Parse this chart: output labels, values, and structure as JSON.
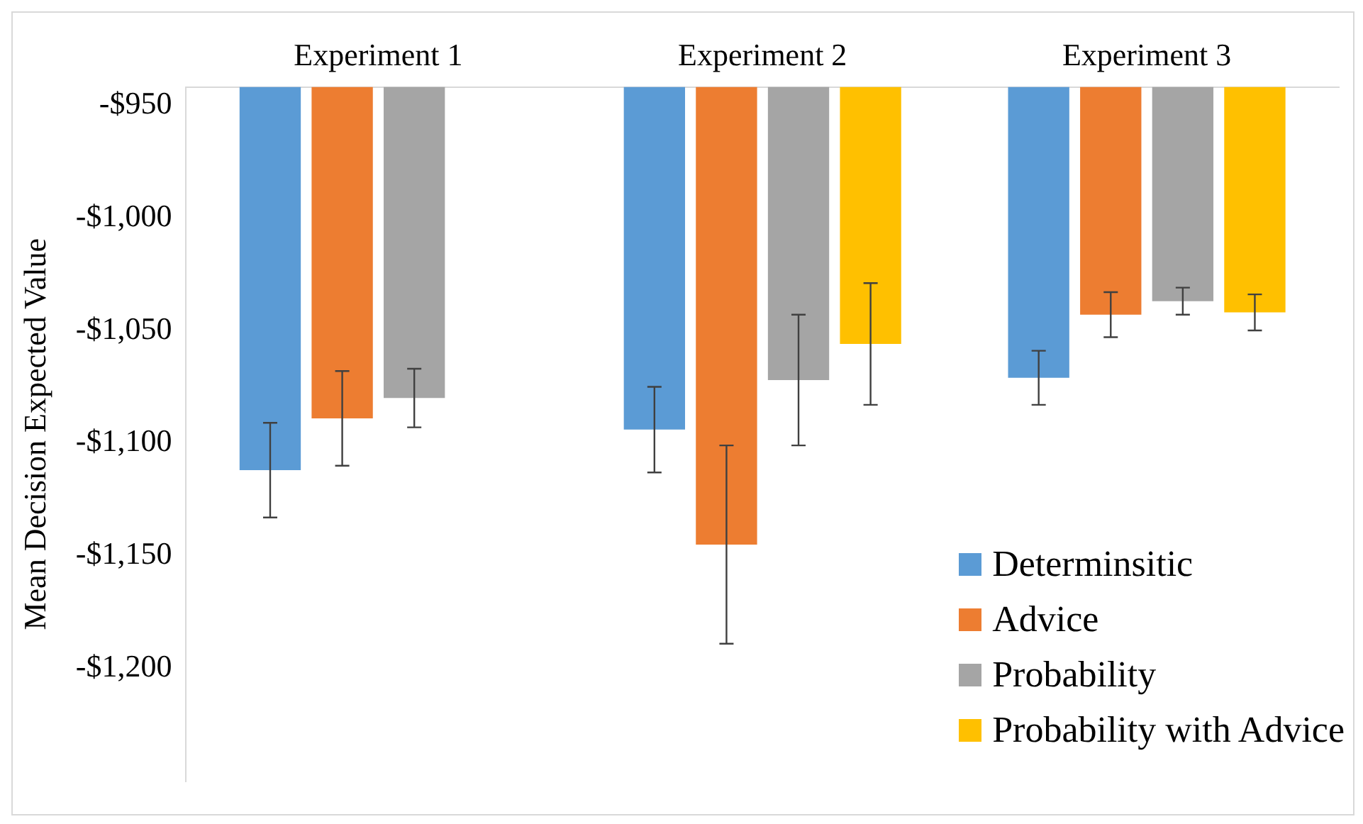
{
  "chart_data": {
    "type": "bar",
    "ylabel": "Mean Decision Expected Value",
    "categories": [
      "Experiment 1",
      "Experiment 2",
      "Experiment 3"
    ],
    "series": [
      {
        "name": "Determinsitic",
        "color": "#5b9bd5",
        "values": [
          -1112,
          -1094,
          -1071
        ],
        "errors": [
          21,
          19,
          12
        ]
      },
      {
        "name": "Advice",
        "color": "#ed7d31",
        "values": [
          -1089,
          -1145,
          -1043
        ],
        "errors": [
          21,
          44,
          10
        ]
      },
      {
        "name": "Probability",
        "color": "#a5a5a5",
        "values": [
          -1080,
          -1072,
          -1037
        ],
        "errors": [
          13,
          29,
          6
        ]
      },
      {
        "name": "Probability with Advice",
        "color": "#ffc000",
        "values": [
          null,
          -1056,
          -1042
        ],
        "errors": [
          null,
          27,
          8
        ]
      }
    ],
    "ylim": [
      -1250,
      -942
    ],
    "yticks": [
      {
        "value": -950,
        "label": "-$950"
      },
      {
        "value": -1000,
        "label": "-$1,000"
      },
      {
        "value": -1050,
        "label": "-$1,050"
      },
      {
        "value": -1100,
        "label": "-$1,100"
      },
      {
        "value": -1150,
        "label": "-$1,150"
      },
      {
        "value": -1200,
        "label": "-$1,200"
      }
    ],
    "grid": false,
    "legend": "bottom right"
  }
}
